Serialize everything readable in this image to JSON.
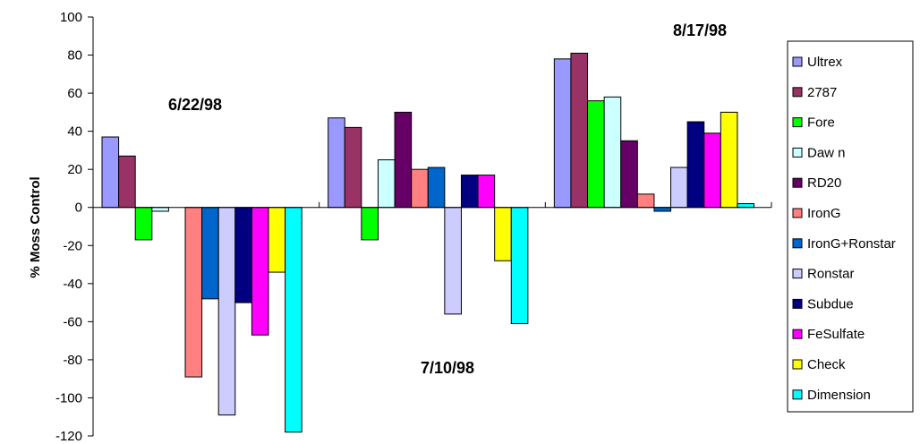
{
  "chart_data": {
    "type": "bar",
    "title": "",
    "xlabel": "",
    "ylabel": "% Moss Control",
    "ylim": [
      -120,
      100
    ],
    "yticks": [
      100,
      80,
      60,
      40,
      20,
      0,
      -20,
      -40,
      -60,
      -80,
      -100,
      -120
    ],
    "grid": false,
    "legend_position": "right",
    "categories": [
      "6/22/98",
      "7/10/98",
      "8/17/98"
    ],
    "series": [
      {
        "name": "Ultrex",
        "color": "#9999ff",
        "values": [
          37,
          47,
          78
        ]
      },
      {
        "name": "2787",
        "color": "#993366",
        "values": [
          27,
          42,
          81
        ]
      },
      {
        "name": "Fore",
        "color": "#00ff00",
        "values": [
          -17,
          -17,
          56
        ]
      },
      {
        "name": "Daw n",
        "color": "#ccffff",
        "values": [
          -2,
          25,
          58
        ]
      },
      {
        "name": "RD20",
        "color": "#660066",
        "values": [
          null,
          50,
          35
        ]
      },
      {
        "name": "IronG",
        "color": "#ff8080",
        "values": [
          -89,
          20,
          7
        ]
      },
      {
        "name": "IronG+Ronstar",
        "color": "#0066cc",
        "values": [
          -48,
          21,
          -2
        ]
      },
      {
        "name": "Ronstar",
        "color": "#ccccff",
        "values": [
          -109,
          -56,
          21
        ]
      },
      {
        "name": "Subdue",
        "color": "#000080",
        "values": [
          -50,
          17,
          45
        ]
      },
      {
        "name": "FeSulfate",
        "color": "#ff00ff",
        "values": [
          -67,
          17,
          39
        ]
      },
      {
        "name": "Check",
        "color": "#ffff00",
        "values": [
          -34,
          -28,
          50
        ]
      },
      {
        "name": "Dimension",
        "color": "#00ffff",
        "values": [
          -118,
          -61,
          2
        ]
      }
    ]
  }
}
